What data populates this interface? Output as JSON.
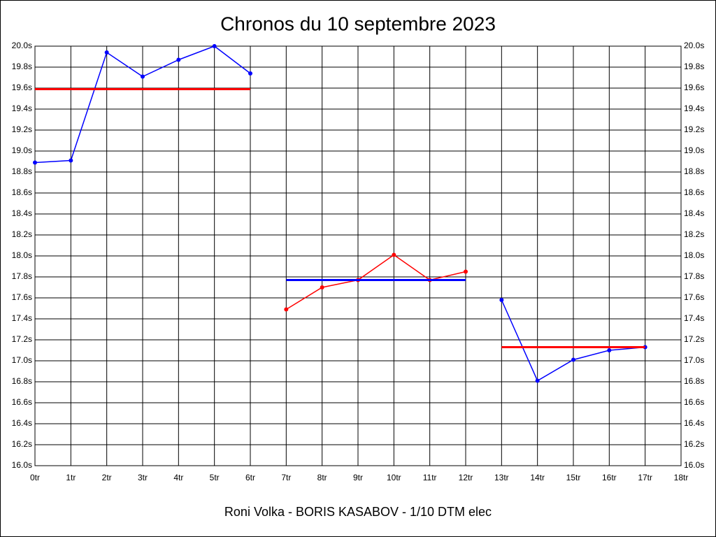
{
  "chart_data": {
    "type": "line",
    "title": "Chronos du 10 septembre 2023",
    "subtitle": "Roni Volka - BORIS KASABOV - 1/10 DTM elec",
    "xlim": [
      0,
      18
    ],
    "xticks": [
      {
        "value": 0,
        "label": "0tr"
      },
      {
        "value": 1,
        "label": "1tr"
      },
      {
        "value": 2,
        "label": "2tr"
      },
      {
        "value": 3,
        "label": "3tr"
      },
      {
        "value": 4,
        "label": "4tr"
      },
      {
        "value": 5,
        "label": "5tr"
      },
      {
        "value": 6,
        "label": "6tr"
      },
      {
        "value": 7,
        "label": "7tr"
      },
      {
        "value": 8,
        "label": "8tr"
      },
      {
        "value": 9,
        "label": "9tr"
      },
      {
        "value": 10,
        "label": "10tr"
      },
      {
        "value": 11,
        "label": "11tr"
      },
      {
        "value": 12,
        "label": "12tr"
      },
      {
        "value": 13,
        "label": "13tr"
      },
      {
        "value": 14,
        "label": "14tr"
      },
      {
        "value": 15,
        "label": "15tr"
      },
      {
        "value": 16,
        "label": "16tr"
      },
      {
        "value": 17,
        "label": "17tr"
      },
      {
        "value": 18,
        "label": "18tr"
      }
    ],
    "ylim": [
      16.0,
      20.0
    ],
    "yticks": [
      {
        "value": 16.0,
        "label": "16.0s"
      },
      {
        "value": 16.2,
        "label": "16.2s"
      },
      {
        "value": 16.4,
        "label": "16.4s"
      },
      {
        "value": 16.6,
        "label": "16.6s"
      },
      {
        "value": 16.8,
        "label": "16.8s"
      },
      {
        "value": 17.0,
        "label": "17.0s"
      },
      {
        "value": 17.2,
        "label": "17.2s"
      },
      {
        "value": 17.4,
        "label": "17.4s"
      },
      {
        "value": 17.6,
        "label": "17.6s"
      },
      {
        "value": 17.8,
        "label": "17.8s"
      },
      {
        "value": 18.0,
        "label": "18.0s"
      },
      {
        "value": 18.2,
        "label": "18.2s"
      },
      {
        "value": 18.4,
        "label": "18.4s"
      },
      {
        "value": 18.6,
        "label": "18.6s"
      },
      {
        "value": 18.8,
        "label": "18.8s"
      },
      {
        "value": 19.0,
        "label": "19.0s"
      },
      {
        "value": 19.2,
        "label": "19.2s"
      },
      {
        "value": 19.4,
        "label": "19.4s"
      },
      {
        "value": 19.6,
        "label": "19.6s"
      },
      {
        "value": 19.8,
        "label": "19.8s"
      },
      {
        "value": 20.0,
        "label": "20.0s"
      }
    ],
    "grid": true,
    "series": [
      {
        "color": "#0000ff",
        "markers": true,
        "x": [
          0,
          1,
          2,
          3,
          4,
          5,
          6
        ],
        "values": [
          18.89,
          18.91,
          19.94,
          19.71,
          19.87,
          20.0,
          19.74
        ]
      },
      {
        "color": "#ff0000",
        "markers": false,
        "x": [
          0,
          6
        ],
        "values": [
          19.59,
          19.59
        ]
      },
      {
        "color": "#ff0000",
        "markers": true,
        "x": [
          7,
          8,
          9,
          10,
          11,
          12
        ],
        "values": [
          17.49,
          17.7,
          17.77,
          18.01,
          17.77,
          17.85
        ]
      },
      {
        "color": "#0000ff",
        "markers": false,
        "x": [
          7,
          12
        ],
        "values": [
          17.77,
          17.77
        ]
      },
      {
        "color": "#0000ff",
        "markers": true,
        "x": [
          13,
          14,
          15,
          16,
          17
        ],
        "values": [
          17.58,
          16.81,
          17.01,
          17.1,
          17.13
        ]
      },
      {
        "color": "#ff0000",
        "markers": false,
        "x": [
          13,
          17
        ],
        "values": [
          17.13,
          17.13
        ]
      }
    ]
  }
}
